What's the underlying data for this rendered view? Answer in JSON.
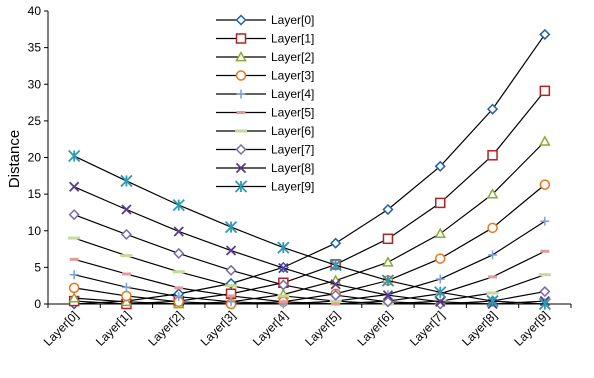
{
  "chart_data": {
    "type": "line",
    "title": "",
    "xlabel": "",
    "ylabel": "Distance",
    "ylim": [
      0,
      40
    ],
    "yticks": [
      0,
      5,
      10,
      15,
      20,
      25,
      30,
      35,
      40
    ],
    "categories": [
      "Layer[0]",
      "Layer[1]",
      "Layer[2]",
      "Layer[3]",
      "Layer[4]",
      "Layer[5]",
      "Layer[6]",
      "Layer[7]",
      "Layer[8]",
      "Layer[9]"
    ],
    "grid": false,
    "legend_position": "top-center",
    "series": [
      {
        "name": "Layer[0]",
        "marker": "diamond",
        "color": "#1f5fa8",
        "values": [
          0,
          0.4,
          1.4,
          2.8,
          5.0,
          8.3,
          12.9,
          18.8,
          26.6,
          36.8
        ]
      },
      {
        "name": "Layer[1]",
        "marker": "square",
        "color": "#b22222",
        "values": [
          0.4,
          0,
          0.4,
          1.4,
          2.9,
          5.4,
          8.9,
          13.8,
          20.3,
          29.1
        ]
      },
      {
        "name": "Layer[2]",
        "marker": "triangle",
        "color": "#8aaa32",
        "values": [
          0.8,
          0.3,
          0,
          0.3,
          1.3,
          3.2,
          5.7,
          9.6,
          15.0,
          22.2
        ]
      },
      {
        "name": "Layer[3]",
        "marker": "circle",
        "color": "#e8761e",
        "values": [
          2.2,
          1.1,
          0.3,
          0,
          0.3,
          1.4,
          3.2,
          6.2,
          10.4,
          16.3
        ]
      },
      {
        "name": "Layer[4]",
        "marker": "plus",
        "color": "#7a9fd8",
        "values": [
          4.0,
          2.3,
          1.0,
          0.3,
          0,
          0.4,
          1.3,
          3.4,
          6.7,
          11.3
        ]
      },
      {
        "name": "Layer[5]",
        "marker": "dash",
        "color": "#e59a9a",
        "values": [
          6.1,
          4.1,
          2.2,
          1.1,
          0.3,
          0,
          0.4,
          1.4,
          3.7,
          7.2
        ]
      },
      {
        "name": "Layer[6]",
        "marker": "longdash",
        "color": "#c5d99a",
        "values": [
          9.0,
          6.6,
          4.4,
          2.5,
          1.1,
          0.4,
          0,
          0.4,
          1.5,
          4.0
        ]
      },
      {
        "name": "Layer[7]",
        "marker": "diamond",
        "color": "#7a6aa8",
        "values": [
          12.2,
          9.5,
          6.9,
          4.6,
          2.6,
          1.2,
          0.3,
          0,
          0.4,
          1.7
        ]
      },
      {
        "name": "Layer[8]",
        "marker": "x",
        "color": "#5a3a8a",
        "values": [
          16.0,
          12.9,
          9.9,
          7.3,
          4.9,
          2.7,
          1.2,
          0.3,
          0,
          0.4
        ]
      },
      {
        "name": "Layer[9]",
        "marker": "star",
        "color": "#2a9ab5",
        "values": [
          20.2,
          16.8,
          13.5,
          10.5,
          7.7,
          5.3,
          3.2,
          1.6,
          0.4,
          0
        ]
      }
    ]
  }
}
